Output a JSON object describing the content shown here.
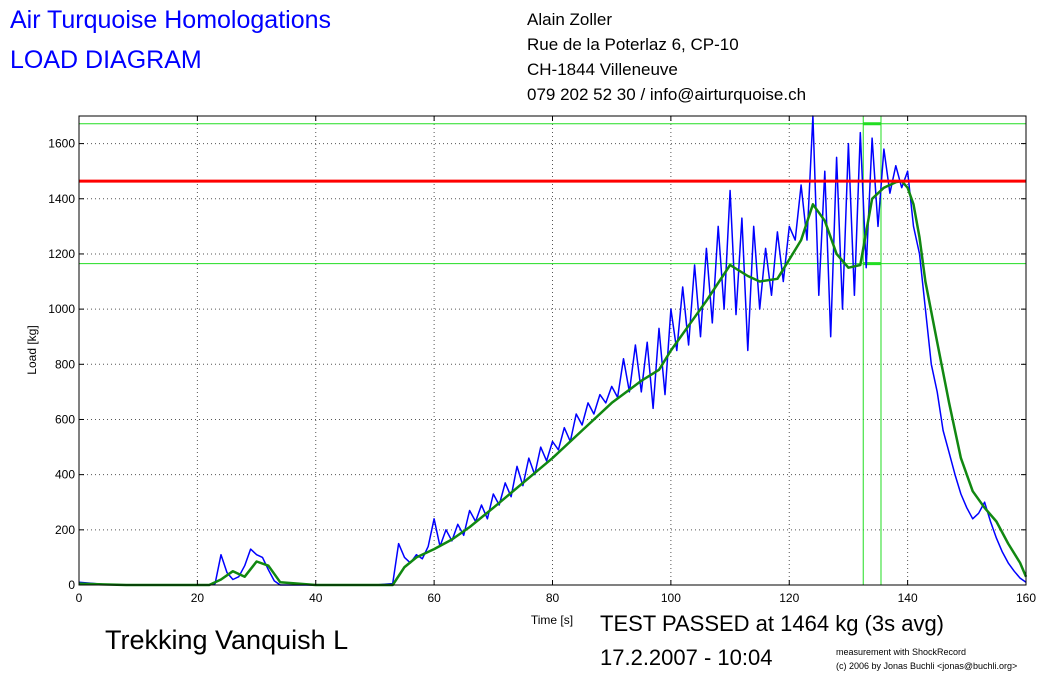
{
  "header": {
    "title_line1": "Air Turquoise Homologations",
    "title_line2": "LOAD DIAGRAM"
  },
  "contact": {
    "name": "Alain Zoller",
    "address": "Rue de la Poterlaz 6, CP-10",
    "city": "CH-1844 Villeneuve",
    "phone_email": "079 202 52 30 / info@airturquoise.ch"
  },
  "footer": {
    "glider_name": "Trekking Vanquish L",
    "result": "TEST PASSED at 1464 kg (3s avg)",
    "datetime": "17.2.2007 - 10:04",
    "credit_line1": "measurement with ShockRecord",
    "credit_line2": "(c) 2006 by Jonas Buchli <jonas@buchli.org>"
  },
  "colors": {
    "raw": "#0000ff",
    "avg": "#118811",
    "limit": "#ff0000",
    "marker": "#22dd22"
  },
  "chart_data": {
    "type": "line",
    "xlabel": "Time [s]",
    "ylabel": "Load [kg]",
    "xlim": [
      0,
      160
    ],
    "ylim": [
      0,
      1700
    ],
    "xticks": [
      0,
      20,
      40,
      60,
      80,
      100,
      120,
      140,
      160
    ],
    "yticks": [
      0,
      200,
      400,
      600,
      800,
      1000,
      1200,
      1400,
      1600
    ],
    "grid": true,
    "limit_line": 1464,
    "marker_hlines": [
      1672,
      1165
    ],
    "marker_vlines": [
      132.5,
      135.5
    ],
    "series": [
      {
        "role": "raw",
        "x": [
          0,
          4,
          8,
          12,
          16,
          20,
          22,
          23,
          24,
          25,
          26,
          27,
          28,
          29,
          30,
          31,
          32,
          33,
          34,
          35,
          40,
          45,
          50,
          53,
          54,
          55,
          56,
          57,
          58,
          59,
          60,
          61,
          62,
          63,
          64,
          65,
          66,
          67,
          68,
          69,
          70,
          71,
          72,
          73,
          74,
          75,
          76,
          77,
          78,
          79,
          80,
          81,
          82,
          83,
          84,
          85,
          86,
          87,
          88,
          89,
          90,
          91,
          92,
          93,
          94,
          95,
          96,
          97,
          98,
          99,
          100,
          101,
          102,
          103,
          104,
          105,
          106,
          107,
          108,
          109,
          110,
          111,
          112,
          113,
          114,
          115,
          116,
          117,
          118,
          119,
          120,
          121,
          122,
          123,
          124,
          125,
          126,
          127,
          128,
          129,
          130,
          131,
          132,
          133,
          134,
          135,
          136,
          137,
          138,
          139,
          140,
          141,
          142,
          143,
          144,
          145,
          146,
          147,
          148,
          149,
          150,
          151,
          152,
          153,
          154,
          155,
          156,
          157,
          158,
          159,
          160
        ],
        "y": [
          10,
          3,
          0,
          0,
          0,
          0,
          0,
          5,
          110,
          45,
          20,
          30,
          70,
          130,
          110,
          100,
          55,
          15,
          0,
          0,
          0,
          0,
          0,
          5,
          150,
          100,
          80,
          110,
          95,
          140,
          240,
          140,
          200,
          160,
          220,
          180,
          270,
          230,
          290,
          240,
          330,
          290,
          370,
          320,
          430,
          360,
          460,
          400,
          500,
          450,
          520,
          490,
          570,
          520,
          620,
          580,
          660,
          620,
          690,
          660,
          720,
          680,
          820,
          700,
          870,
          700,
          880,
          640,
          930,
          690,
          1000,
          850,
          1080,
          870,
          1160,
          900,
          1220,
          950,
          1300,
          1000,
          1430,
          980,
          1330,
          850,
          1300,
          1000,
          1220,
          1050,
          1280,
          1100,
          1300,
          1250,
          1450,
          1250,
          1700,
          1050,
          1500,
          900,
          1550,
          1000,
          1600,
          1050,
          1640,
          1150,
          1620,
          1300,
          1580,
          1420,
          1520,
          1440,
          1500,
          1300,
          1200,
          1000,
          800,
          700,
          560,
          480,
          400,
          330,
          280,
          240,
          260,
          300,
          230,
          170,
          120,
          80,
          50,
          25,
          10
        ]
      },
      {
        "role": "avg",
        "x": [
          0,
          4,
          8,
          12,
          16,
          20,
          22,
          24,
          26,
          28,
          30,
          32,
          34,
          40,
          45,
          50,
          53,
          55,
          57,
          60,
          63,
          66,
          70,
          75,
          80,
          85,
          90,
          95,
          98,
          100,
          103,
          106,
          110,
          113,
          115,
          118,
          120,
          122,
          124,
          126,
          128,
          130,
          132,
          134,
          136,
          138,
          139,
          140,
          141,
          142,
          143,
          145,
          147,
          149,
          151,
          153,
          155,
          157,
          159,
          160
        ],
        "y": [
          5,
          2,
          0,
          0,
          0,
          0,
          0,
          20,
          50,
          30,
          85,
          70,
          10,
          0,
          0,
          0,
          0,
          65,
          100,
          130,
          165,
          210,
          280,
          370,
          460,
          560,
          660,
          740,
          780,
          850,
          940,
          1030,
          1160,
          1120,
          1100,
          1110,
          1180,
          1250,
          1380,
          1320,
          1200,
          1150,
          1160,
          1400,
          1440,
          1460,
          1464,
          1440,
          1380,
          1260,
          1100,
          880,
          660,
          460,
          340,
          280,
          230,
          150,
          80,
          30
        ]
      }
    ]
  }
}
